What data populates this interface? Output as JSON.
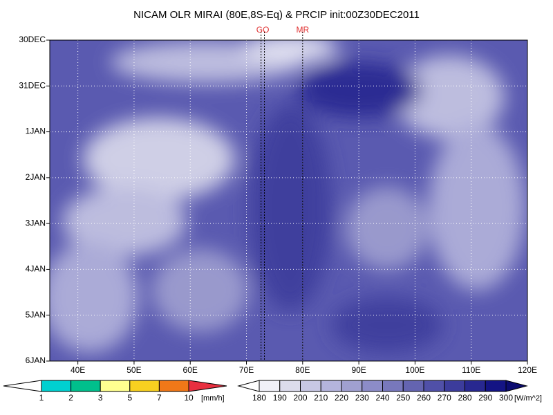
{
  "chart_data": {
    "type": "hovmoller",
    "title": "NICAM OLR MIRAI (80E,8S-Eq) & PRCIP init:00Z30DEC2011",
    "xlim": [
      35,
      120
    ],
    "xticks": [
      {
        "value": 40,
        "label": "40E"
      },
      {
        "value": 50,
        "label": "50E"
      },
      {
        "value": 60,
        "label": "60E"
      },
      {
        "value": 70,
        "label": "70E"
      },
      {
        "value": 80,
        "label": "80E"
      },
      {
        "value": 90,
        "label": "90E"
      },
      {
        "value": 100,
        "label": "100E"
      },
      {
        "value": 110,
        "label": "110E"
      },
      {
        "value": 120,
        "label": "120E"
      }
    ],
    "ylim": [
      0,
      7
    ],
    "yticks": [
      {
        "value": 0,
        "label": "30DEC"
      },
      {
        "value": 1,
        "label": "31DEC"
      },
      {
        "value": 2,
        "label": "1JAN"
      },
      {
        "value": 3,
        "label": "2JAN"
      },
      {
        "value": 4,
        "label": "3JAN"
      },
      {
        "value": 5,
        "label": "4JAN"
      },
      {
        "value": 6,
        "label": "5JAN"
      },
      {
        "value": 7,
        "label": "6JAN"
      }
    ],
    "grid": true,
    "reference_lines": [
      {
        "label": "GO",
        "values": [
          72.6,
          73.2
        ]
      },
      {
        "label": "MR",
        "values": [
          80
        ]
      }
    ],
    "colorbars": [
      {
        "ticks": [
          1,
          2,
          3,
          5,
          7,
          10
        ],
        "unit": "[mm/h]",
        "colors": [
          "#ffffff",
          "#00d0d0",
          "#00c08c",
          "#ffff90",
          "#f8d020",
          "#f07818",
          "#e83040"
        ]
      },
      {
        "ticks": [
          180,
          190,
          200,
          210,
          220,
          230,
          240,
          250,
          260,
          270,
          280,
          290,
          300
        ],
        "unit": "[W/m^2]",
        "colors": [
          "#ffffff",
          "#f0f0f8",
          "#dcdcec",
          "#c8c8e4",
          "#b4b4dc",
          "#a0a0d0",
          "#8c8cc8",
          "#7878bc",
          "#6464b0",
          "#5050a8",
          "#3c3c9c",
          "#282890",
          "#141484",
          "#0c0c70"
        ]
      }
    ]
  }
}
